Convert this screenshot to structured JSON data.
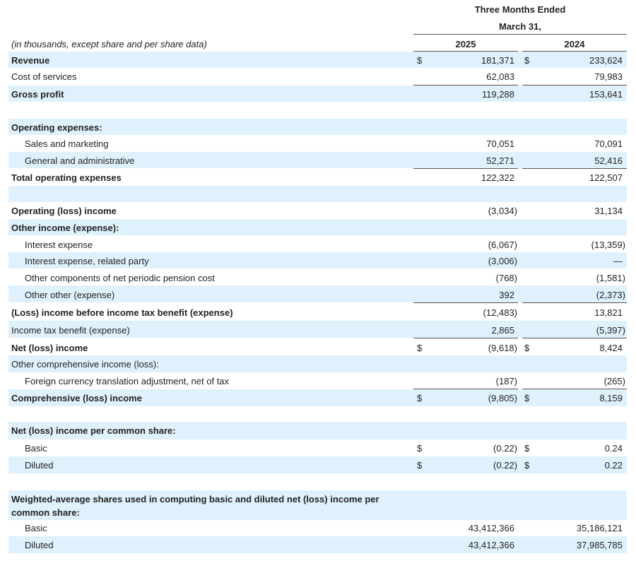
{
  "header": {
    "period_line1": "Three Months Ended",
    "period_line2": "March 31,",
    "col_2025": "2025",
    "col_2024": "2024",
    "units_note": "(in thousands, except share and per share data)"
  },
  "rows": [
    {
      "label": "Revenue",
      "d1": "$",
      "v1": "181,371",
      "d2": "$",
      "v2": "233,624"
    },
    {
      "label": "Cost of services",
      "v1": "62,083",
      "v2": "79,983"
    },
    {
      "label": "Gross profit",
      "v1": "119,288",
      "v2": "153,641"
    },
    {
      "label": "Operating expenses:"
    },
    {
      "label": "Sales and marketing",
      "v1": "70,051",
      "v2": "70,091"
    },
    {
      "label": "General and administrative",
      "v1": "52,271",
      "v2": "52,416"
    },
    {
      "label": "Total operating expenses",
      "v1": "122,322",
      "v2": "122,507"
    },
    {
      "label": "Operating (loss) income",
      "v1": "(3,034)",
      "v2": "31,134"
    },
    {
      "label": "Other income (expense):"
    },
    {
      "label": "Interest expense",
      "v1": "(6,067)",
      "v2": "(13,359)"
    },
    {
      "label": "Interest expense, related party",
      "v1": "(3,006)",
      "v2": "—"
    },
    {
      "label": "Other components of net periodic pension cost",
      "v1": "(768)",
      "v2": "(1,581)"
    },
    {
      "label": "Other other (expense)",
      "v1": "392",
      "v2": "(2,373)"
    },
    {
      "label": "(Loss) income before income tax benefit (expense)",
      "v1": "(12,483)",
      "v2": "13,821"
    },
    {
      "label": "Income tax benefit (expense)",
      "v1": "2,865",
      "v2": "(5,397)"
    },
    {
      "label": "Net (loss) income",
      "d1": "$",
      "v1": "(9,618)",
      "d2": "$",
      "v2": "8,424"
    },
    {
      "label": "Other comprehensive income (loss):"
    },
    {
      "label": "Foreign currency translation adjustment, net of tax",
      "v1": "(187)",
      "v2": "(265)"
    },
    {
      "label": "Comprehensive (loss) income",
      "d1": "$",
      "v1": "(9,805)",
      "d2": "$",
      "v2": "8,159"
    },
    {
      "label": "Net (loss) income per common share:"
    },
    {
      "label": "Basic",
      "d1": "$",
      "v1": "(0.22)",
      "d2": "$",
      "v2": "0.24"
    },
    {
      "label": "Diluted",
      "d1": "$",
      "v1": "(0.22)",
      "d2": "$",
      "v2": "0.22"
    },
    {
      "label": "Weighted-average shares used in computing basic and diluted net (loss) income per common share:"
    },
    {
      "label": "Basic",
      "v1": "43,412,366",
      "v2": "35,186,121"
    },
    {
      "label": "Diluted",
      "v1": "43,412,366",
      "v2": "37,985,785"
    }
  ]
}
